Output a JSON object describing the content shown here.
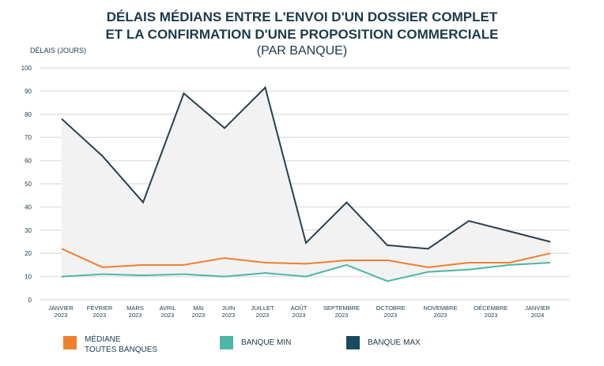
{
  "chart_data": {
    "type": "line",
    "title": [
      "DÉLAIS MÉDIANS ENTRE L'ENVOI D'UN DOSSIER COMPLET",
      "ET LA CONFIRMATION D'UNE PROPOSITION COMMERCIALE"
    ],
    "subtitle": "(PAR BANQUE)",
    "ylabel": "DÉLAIS (JOURS)",
    "ylim": [
      0,
      100
    ],
    "yticks": [
      0,
      10,
      20,
      30,
      40,
      50,
      60,
      70,
      80,
      90,
      100
    ],
    "grid": true,
    "legend_position": "bottom",
    "categories": [
      [
        "JANVIER",
        "2023"
      ],
      [
        "FÉVRIER",
        "2023"
      ],
      [
        "MARS",
        "2023"
      ],
      [
        "AVRIL",
        "2023"
      ],
      [
        "MAI",
        "2023"
      ],
      [
        "JUIN",
        "2023"
      ],
      [
        "JUILLET",
        "2023"
      ],
      [
        "AOÛT",
        "2023"
      ],
      [
        "SEPTEMBRE",
        "2023"
      ],
      [
        "OCTOBRE",
        "2023"
      ],
      [
        "NOVEMBRE",
        "2023"
      ],
      [
        "DÉCEMBRE",
        "2023"
      ],
      [
        "JANVIER",
        "2024"
      ]
    ],
    "series": [
      {
        "name": "BANQUE MAX",
        "color": "#2a3f4c",
        "legend_color": "#1a4a5e",
        "values": [
          78,
          62,
          42,
          89,
          74,
          91.5,
          24.5,
          42,
          23.5,
          22,
          34,
          29.5,
          25
        ]
      },
      {
        "name": "MÉDIANE TOUTES BANQUES",
        "name_lines": [
          "MÉDIANE",
          "TOUTES BANQUES"
        ],
        "color": "#f07f2d",
        "values": [
          22,
          14,
          15,
          15,
          18,
          16,
          15.5,
          17,
          17,
          14,
          16,
          16,
          20
        ]
      },
      {
        "name": "BANQUE MIN",
        "color": "#4db6a6",
        "values": [
          10,
          11,
          10.5,
          11,
          10,
          11.5,
          10,
          15,
          8,
          12,
          13,
          15,
          16
        ]
      }
    ]
  }
}
